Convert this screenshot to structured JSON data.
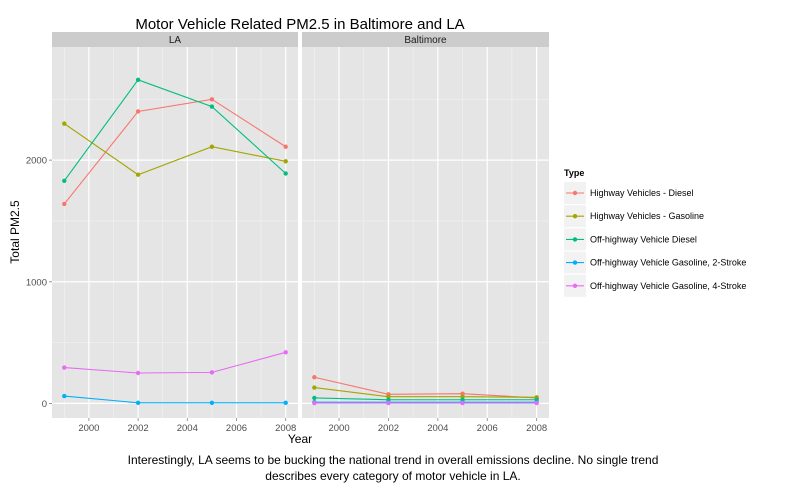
{
  "caption_lines": [
    "Interestingly, LA seems to be bucking the national trend in overall emissions decline. No single trend",
    "describes every category of motor vehicle in LA."
  ],
  "chart_data": {
    "type": "line",
    "title": "Motor Vehicle Related PM2.5 in Baltimore and LA",
    "xlabel": "Year",
    "ylabel": "Total PM2.5",
    "x": [
      1999,
      2002,
      2005,
      2008
    ],
    "xlim": [
      1998.5,
      2008.5
    ],
    "ylim": [
      -120,
      2930
    ],
    "xticks": [
      2000,
      2002,
      2004,
      2006,
      2008
    ],
    "yticks": [
      0,
      1000,
      2000
    ],
    "grid": true,
    "legend": {
      "title": "Type",
      "position": "right"
    },
    "colors": {
      "Highway Vehicles - Diesel": "#F8766D",
      "Highway Vehicles - Gasoline": "#A3A500",
      "Off-highway Vehicle Diesel": "#00BF7D",
      "Off-highway Vehicle Gasoline, 2-Stroke": "#00B0F6",
      "Off-highway Vehicle Gasoline, 4-Stroke": "#E76BF3"
    },
    "facets": [
      {
        "label": "LA",
        "series": [
          {
            "name": "Highway Vehicles - Diesel",
            "values": [
              1640,
              2400,
              2500,
              2110
            ]
          },
          {
            "name": "Highway Vehicles - Gasoline",
            "values": [
              2300,
              1880,
              2110,
              1990
            ]
          },
          {
            "name": "Off-highway Vehicle Diesel",
            "values": [
              1830,
              2660,
              2440,
              1890
            ]
          },
          {
            "name": "Off-highway Vehicle Gasoline, 2-Stroke",
            "values": [
              60,
              5,
              5,
              5
            ]
          },
          {
            "name": "Off-highway Vehicle Gasoline, 4-Stroke",
            "values": [
              295,
              250,
              255,
              420
            ]
          }
        ]
      },
      {
        "label": "Baltimore",
        "series": [
          {
            "name": "Highway Vehicles - Diesel",
            "values": [
              215,
              75,
              80,
              45
            ]
          },
          {
            "name": "Highway Vehicles - Gasoline",
            "values": [
              130,
              55,
              55,
              50
            ]
          },
          {
            "name": "Off-highway Vehicle Diesel",
            "values": [
              45,
              30,
              30,
              30
            ]
          },
          {
            "name": "Off-highway Vehicle Gasoline, 2-Stroke",
            "values": [
              10,
              10,
              10,
              10
            ]
          },
          {
            "name": "Off-highway Vehicle Gasoline, 4-Stroke",
            "values": [
              3,
              3,
              3,
              3
            ]
          }
        ]
      }
    ]
  }
}
